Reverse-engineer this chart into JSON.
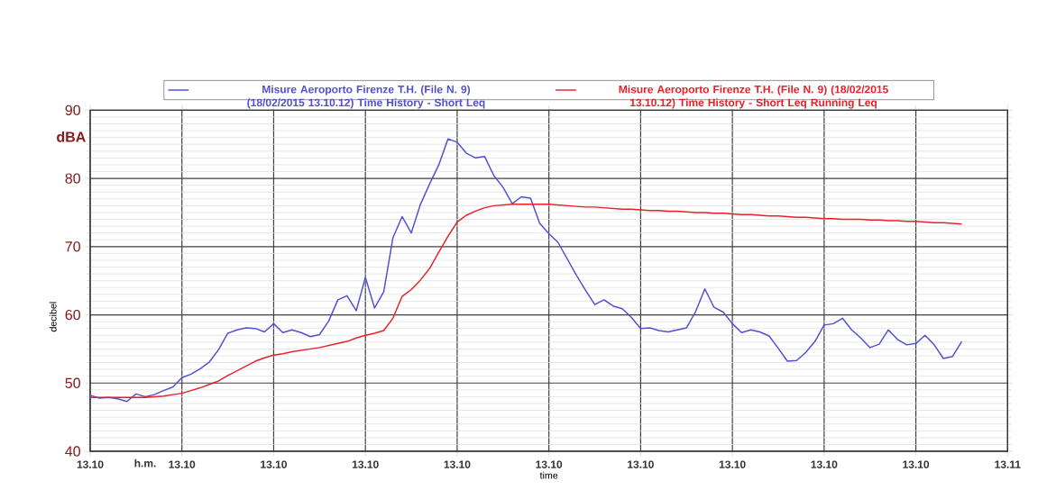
{
  "chart_data": {
    "type": "line",
    "xlabel": "time",
    "ylabel": "decibel",
    "annotations": [
      "dBA",
      "h.m."
    ],
    "categories": [
      "13.10",
      null,
      null,
      null,
      null,
      null,
      null,
      null,
      null,
      null,
      "13.10",
      null,
      null,
      null,
      null,
      null,
      null,
      null,
      null,
      null,
      "13.10",
      null,
      null,
      null,
      null,
      null,
      null,
      null,
      null,
      null,
      "13.10",
      null,
      null,
      null,
      null,
      null,
      null,
      null,
      null,
      null,
      "13.10",
      null,
      null,
      null,
      null,
      null,
      null,
      null,
      null,
      null,
      "13.10",
      null,
      null,
      null,
      null,
      null,
      null,
      null,
      null,
      null,
      "13.10",
      null,
      null,
      null,
      null,
      null,
      null,
      null,
      null,
      null,
      "13.10",
      null,
      null,
      null,
      null,
      null,
      null,
      null,
      null,
      null,
      "13.10",
      null,
      null,
      null,
      null,
      null,
      null,
      null,
      null,
      null,
      "13.10",
      null,
      null,
      null,
      null,
      null,
      null,
      null,
      null,
      null,
      "13.11"
    ],
    "ylim": [
      40,
      90
    ],
    "yticks": [
      40,
      50,
      60,
      70,
      80,
      90
    ],
    "grid": true,
    "legend": "top",
    "marker": "none",
    "line_style": "solid",
    "series": [
      {
        "name": "Misure Aeroporto Firenze  T.H.  (File N. 9) (18/02/2015 13.10.12) Time History - Short Leq",
        "color": "#5050d0",
        "values": [
          48.2,
          47.8,
          47.9,
          47.7,
          47.3,
          48.4,
          48.0,
          48.3,
          48.9,
          49.4,
          50.8,
          51.3,
          52.1,
          53.1,
          54.9,
          57.3,
          57.8,
          58.1,
          58.0,
          57.5,
          58.7,
          57.4,
          57.8,
          57.4,
          56.8,
          57.1,
          59.1,
          62.2,
          62.8,
          60.6,
          65.5,
          61.0,
          63.4,
          71.3,
          74.4,
          72.0,
          76.2,
          79.2,
          82.0,
          85.8,
          85.3,
          83.7,
          83.0,
          83.2,
          80.4,
          78.7,
          76.3,
          77.3,
          77.1,
          73.4,
          71.9,
          70.6,
          68.2,
          65.8,
          63.6,
          61.5,
          62.2,
          61.3,
          60.9,
          59.6,
          58.0,
          58.1,
          57.7,
          57.5,
          57.8,
          58.1,
          60.5,
          63.8,
          61.1,
          60.4,
          58.7,
          57.4,
          57.8,
          57.5,
          56.9,
          55.1,
          53.2,
          53.3,
          54.5,
          56.1,
          58.5,
          58.7,
          59.5,
          57.8,
          56.6,
          55.2,
          55.7,
          57.8,
          56.4,
          55.6,
          55.8,
          57.0,
          55.6,
          53.6,
          53.9,
          56.1,
          null,
          null,
          null,
          null,
          null
        ]
      },
      {
        "name": "Misure Aeroporto Firenze  T.H.  (File N. 9) (18/02/2015 13.10.12) Time History - Short Leq Running Leq",
        "color": "#e8202a",
        "values": [
          47.9,
          47.9,
          47.9,
          47.9,
          47.9,
          47.9,
          47.9,
          48.0,
          48.1,
          48.3,
          48.5,
          48.9,
          49.3,
          49.8,
          50.3,
          51.1,
          51.8,
          52.5,
          53.2,
          53.7,
          54.1,
          54.3,
          54.6,
          54.8,
          55.0,
          55.2,
          55.5,
          55.8,
          56.1,
          56.6,
          57.0,
          57.3,
          57.7,
          59.5,
          62.7,
          63.7,
          65.1,
          66.8,
          69.2,
          71.5,
          73.6,
          74.6,
          75.2,
          75.7,
          76.0,
          76.1,
          76.2,
          76.2,
          76.2,
          76.2,
          76.2,
          76.1,
          76.0,
          75.9,
          75.8,
          75.8,
          75.7,
          75.6,
          75.5,
          75.5,
          75.4,
          75.3,
          75.3,
          75.2,
          75.2,
          75.1,
          75.0,
          75.0,
          74.9,
          74.9,
          74.8,
          74.7,
          74.7,
          74.6,
          74.5,
          74.5,
          74.4,
          74.3,
          74.3,
          74.2,
          74.1,
          74.1,
          74.0,
          74.0,
          74.0,
          73.9,
          73.9,
          73.8,
          73.8,
          73.7,
          73.7,
          73.6,
          73.5,
          73.5,
          73.4,
          73.3,
          null,
          null,
          null,
          null,
          null
        ]
      }
    ]
  }
}
